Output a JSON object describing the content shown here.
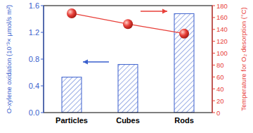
{
  "chart_data": {
    "type": "bar",
    "categories": [
      "Particles",
      "Cubes",
      "Rods"
    ],
    "y_label": "O-xylene oxidation (10⁻³× μmol/s m²)",
    "y2_label": "Temperature for O₂ desorption (°C)",
    "ylim": [
      0,
      1.6
    ],
    "yticks": [
      {
        "value": 0,
        "label": "0.0"
      },
      0.4,
      0.8,
      1.2,
      1.6
    ],
    "y2lim": [
      0,
      180
    ],
    "y2ticks": [
      0,
      20,
      40,
      60,
      80,
      100,
      120,
      140,
      160,
      180
    ],
    "series": [
      {
        "type": "bar",
        "color": "#3a5fcd",
        "values": [
          0.53,
          0.72,
          1.48
        ]
      },
      {
        "type": "line",
        "axis": "y2",
        "color": "#e8403a",
        "marker": "circle",
        "values": [
          167,
          149,
          133
        ]
      }
    ]
  }
}
